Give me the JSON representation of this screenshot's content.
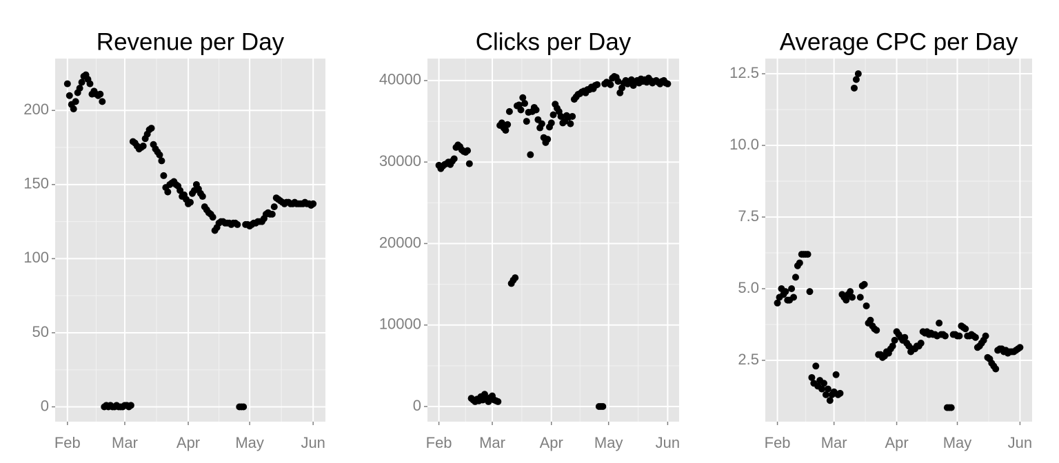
{
  "chart_data": [
    {
      "type": "scatter",
      "title": "Revenue per Day",
      "color": "#000000",
      "grid": true,
      "xlim": [
        -6,
        126
      ],
      "xticks": [
        {
          "value": 0,
          "label": "Feb"
        },
        {
          "value": 28,
          "label": "Mar"
        },
        {
          "value": 59,
          "label": "Apr"
        },
        {
          "value": 89,
          "label": "May"
        },
        {
          "value": 120,
          "label": "Jun"
        }
      ],
      "ylim": [
        -10,
        235
      ],
      "yticks": [
        0,
        50,
        100,
        150,
        200
      ],
      "x": [
        0,
        1,
        2,
        3,
        4,
        5,
        6,
        7,
        8,
        9,
        10,
        11,
        12,
        13,
        14,
        15,
        16,
        17,
        18,
        19,
        20,
        21,
        22,
        23,
        24,
        25,
        26,
        27,
        28,
        29,
        30,
        31,
        32,
        33,
        34,
        35,
        36,
        37,
        38,
        39,
        40,
        41,
        42,
        43,
        44,
        45,
        46,
        47,
        48,
        49,
        50,
        51,
        52,
        53,
        54,
        55,
        56,
        57,
        58,
        59,
        60,
        61,
        62,
        63,
        64,
        65,
        66,
        67,
        68,
        69,
        70,
        71,
        72,
        73,
        74,
        75,
        76,
        77,
        78,
        79,
        80,
        81,
        82,
        83,
        84,
        85,
        86,
        87,
        88,
        89,
        90,
        91,
        92,
        93,
        94,
        95,
        96,
        97,
        98,
        99,
        100,
        101,
        102,
        103,
        104,
        105,
        106,
        107,
        108,
        109,
        110,
        111,
        112,
        113,
        114,
        115,
        116,
        117,
        118,
        119,
        120
      ],
      "values": [
        218,
        210,
        204,
        201,
        206,
        212,
        215,
        219,
        223,
        224,
        221,
        218,
        211,
        213,
        211,
        210,
        211,
        206,
        0,
        1,
        0,
        1,
        0,
        0,
        1,
        0,
        0,
        0,
        1,
        1,
        0,
        1,
        179,
        178,
        176,
        174,
        175,
        176,
        181,
        184,
        187,
        188,
        177,
        174,
        172,
        170,
        166,
        156,
        148,
        145,
        150,
        151,
        152,
        150,
        149,
        146,
        142,
        143,
        140,
        137,
        138,
        144,
        146,
        150,
        147,
        144,
        142,
        135,
        133,
        131,
        130,
        128,
        119,
        121,
        124,
        125,
        125,
        124,
        124,
        124,
        123,
        124,
        124,
        123,
        0,
        0,
        0,
        123,
        123,
        122,
        123,
        124,
        124,
        125,
        125,
        125,
        127,
        130,
        131,
        130,
        130,
        135,
        141,
        140,
        139,
        138,
        137,
        138,
        138,
        137,
        137,
        138,
        137,
        137,
        137,
        137,
        138,
        137,
        137,
        136,
        137
      ]
    },
    {
      "type": "scatter",
      "title": "Clicks per Day",
      "color": "#000000",
      "grid": true,
      "xlim": [
        -6,
        126
      ],
      "xticks": [
        {
          "value": 0,
          "label": "Feb"
        },
        {
          "value": 28,
          "label": "Mar"
        },
        {
          "value": 59,
          "label": "Apr"
        },
        {
          "value": 89,
          "label": "May"
        },
        {
          "value": 120,
          "label": "Jun"
        }
      ],
      "ylim": [
        -1860,
        42700
      ],
      "yticks": [
        0,
        10000,
        20000,
        30000,
        40000
      ],
      "x": [
        0,
        1,
        2,
        3,
        4,
        5,
        6,
        7,
        8,
        9,
        10,
        11,
        12,
        13,
        14,
        15,
        16,
        17,
        18,
        19,
        20,
        21,
        22,
        23,
        24,
        25,
        26,
        27,
        28,
        29,
        30,
        31,
        32,
        33,
        34,
        35,
        36,
        37,
        38,
        39,
        40,
        41,
        42,
        43,
        44,
        45,
        46,
        47,
        48,
        49,
        50,
        51,
        52,
        53,
        54,
        55,
        56,
        57,
        58,
        59,
        60,
        61,
        62,
        63,
        64,
        65,
        66,
        67,
        68,
        69,
        70,
        71,
        72,
        73,
        74,
        75,
        76,
        77,
        78,
        79,
        80,
        81,
        82,
        83,
        84,
        85,
        86,
        87,
        88,
        89,
        90,
        91,
        92,
        93,
        94,
        95,
        96,
        97,
        98,
        99,
        100,
        101,
        102,
        103,
        104,
        105,
        106,
        107,
        108,
        109,
        110,
        111,
        112,
        113,
        114,
        115,
        116,
        117,
        118,
        119,
        120
      ],
      "values": [
        29600,
        29200,
        29500,
        29700,
        29800,
        30000,
        29700,
        30100,
        30400,
        31800,
        32100,
        31900,
        31500,
        31300,
        31200,
        31400,
        29800,
        1000,
        800,
        600,
        900,
        700,
        1200,
        800,
        1500,
        900,
        600,
        1100,
        1300,
        800,
        700,
        600,
        34500,
        34800,
        34200,
        33900,
        34600,
        36200,
        15100,
        15500,
        15800,
        36900,
        37000,
        36400,
        37900,
        37200,
        35000,
        36100,
        30900,
        36200,
        36700,
        36400,
        35200,
        34200,
        34700,
        33000,
        32400,
        32800,
        34300,
        34800,
        35800,
        37100,
        36600,
        36200,
        35600,
        34800,
        35000,
        35700,
        35500,
        34700,
        35600,
        37700,
        38000,
        38300,
        38400,
        38600,
        38700,
        38500,
        38900,
        38900,
        39200,
        39000,
        39400,
        39500,
        0,
        0,
        0,
        39600,
        39800,
        39700,
        39500,
        40300,
        40500,
        40400,
        39900,
        38500,
        39100,
        39700,
        40000,
        39600,
        39900,
        40100,
        39400,
        39800,
        40000,
        39700,
        40200,
        39900,
        40100,
        39800,
        40300,
        40000,
        39700,
        39900,
        40000,
        39800,
        39600,
        39900,
        40000,
        39700,
        39600
      ]
    },
    {
      "type": "scatter",
      "title": "Average CPC per Day",
      "color": "#000000",
      "grid": true,
      "xlim": [
        -6,
        126
      ],
      "xticks": [
        {
          "value": 0,
          "label": "Feb"
        },
        {
          "value": 28,
          "label": "Mar"
        },
        {
          "value": 59,
          "label": "Apr"
        },
        {
          "value": 89,
          "label": "May"
        },
        {
          "value": 120,
          "label": "Jun"
        }
      ],
      "ylim": [
        0.36,
        13.03
      ],
      "yticks": [
        2.5,
        {
          "value": 5,
          "label": "5.0"
        },
        7.5,
        {
          "value": 10,
          "label": "10.0"
        },
        12.5
      ],
      "x": [
        0,
        1,
        2,
        3,
        4,
        5,
        6,
        7,
        8,
        9,
        10,
        11,
        12,
        13,
        14,
        15,
        16,
        17,
        18,
        19,
        20,
        21,
        22,
        23,
        24,
        25,
        26,
        27,
        28,
        29,
        30,
        31,
        32,
        33,
        34,
        35,
        36,
        37,
        38,
        39,
        40,
        41,
        42,
        43,
        44,
        45,
        46,
        47,
        48,
        49,
        50,
        51,
        52,
        53,
        54,
        55,
        56,
        57,
        58,
        59,
        60,
        61,
        62,
        63,
        64,
        65,
        66,
        67,
        68,
        69,
        70,
        71,
        72,
        73,
        74,
        75,
        76,
        77,
        78,
        79,
        80,
        81,
        82,
        83,
        84,
        85,
        86,
        87,
        88,
        89,
        90,
        91,
        92,
        93,
        94,
        95,
        96,
        97,
        98,
        99,
        100,
        101,
        102,
        103,
        104,
        105,
        106,
        107,
        108,
        109,
        110,
        111,
        112,
        113,
        114,
        115,
        116,
        117,
        118,
        119,
        120
      ],
      "values": [
        4.5,
        4.7,
        5.0,
        4.8,
        4.9,
        4.6,
        4.6,
        5.0,
        4.7,
        5.4,
        5.8,
        5.9,
        6.2,
        6.2,
        6.2,
        6.2,
        4.9,
        1.9,
        1.7,
        2.3,
        1.6,
        1.8,
        1.5,
        1.7,
        1.3,
        1.5,
        1.1,
        1.3,
        1.4,
        2.0,
        1.3,
        1.35,
        4.8,
        4.7,
        4.6,
        4.8,
        4.9,
        4.7,
        12.0,
        12.3,
        12.5,
        4.7,
        5.1,
        5.15,
        4.4,
        3.8,
        3.9,
        3.7,
        3.6,
        3.55,
        2.7,
        2.7,
        2.6,
        2.65,
        2.8,
        2.75,
        2.9,
        3.0,
        3.2,
        3.5,
        3.4,
        3.3,
        3.2,
        3.3,
        3.1,
        3.0,
        2.8,
        2.9,
        2.9,
        3.0,
        3.0,
        3.1,
        3.5,
        3.45,
        3.5,
        3.4,
        3.45,
        3.4,
        3.4,
        3.35,
        3.8,
        3.4,
        3.4,
        3.35,
        0.85,
        0.85,
        0.85,
        3.4,
        3.4,
        3.35,
        3.35,
        3.7,
        3.65,
        3.6,
        3.35,
        3.35,
        3.4,
        3.35,
        3.3,
        2.95,
        3.0,
        3.1,
        3.2,
        3.35,
        2.6,
        2.55,
        2.4,
        2.3,
        2.2,
        2.85,
        2.9,
        2.9,
        2.8,
        2.85,
        2.75,
        2.8,
        2.8,
        2.8,
        2.85,
        2.9,
        2.95
      ]
    }
  ]
}
